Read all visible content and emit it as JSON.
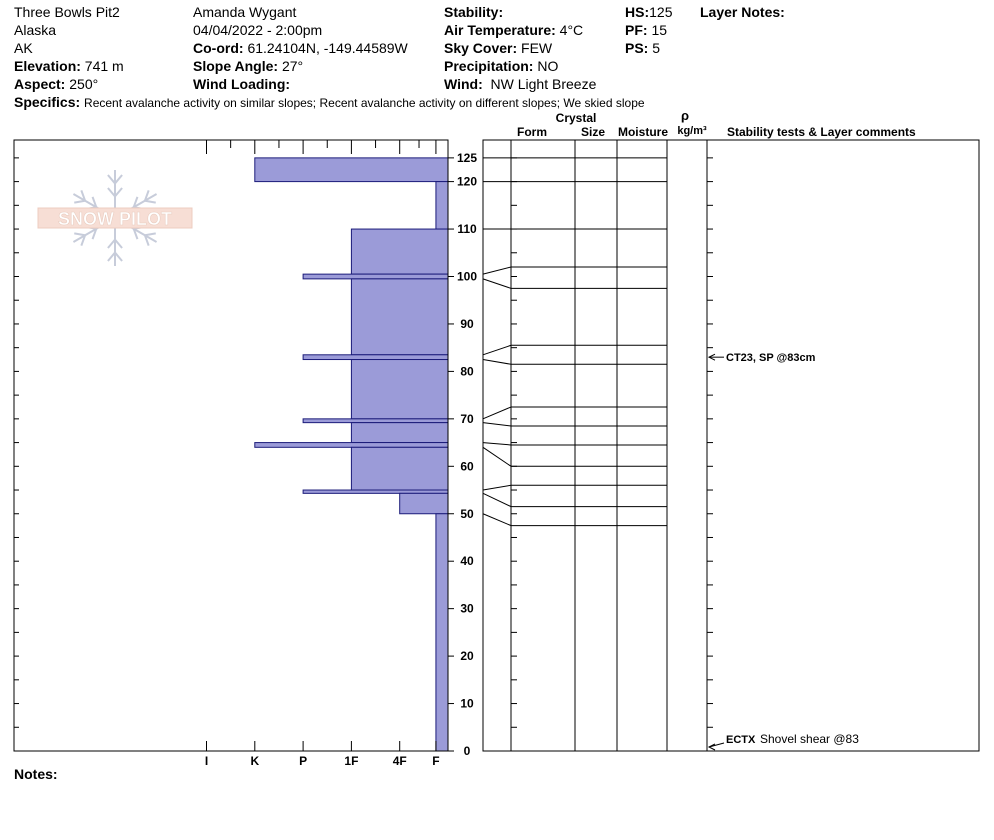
{
  "header": {
    "pit_name": "Three Bowls Pit2",
    "region": "Alaska",
    "state": "AK",
    "elevation_label": "Elevation:",
    "elevation": "741 m",
    "aspect_label": "Aspect:",
    "aspect": "250°",
    "observer": "Amanda Wygant",
    "datetime": "04/04/2022 - 2:00pm",
    "coord_label": "Co-ord:",
    "coord": "61.24104N, -149.44589W",
    "slope_label": "Slope Angle:",
    "slope": "27°",
    "wind_loading_label": "Wind Loading:",
    "wind_loading": "",
    "stability_label": "Stability:",
    "stability": "",
    "air_temp_label": "Air Temperature:",
    "air_temp": "4°C",
    "sky_label": "Sky Cover:",
    "sky": "FEW",
    "precip_label": "Precipitation:",
    "precip": "NO",
    "wind_label": "Wind:",
    "wind": "NW Light Breeze",
    "hs_label": "HS:",
    "hs": "125",
    "pf_label": "PF:",
    "pf": "15",
    "ps_label": "PS:",
    "ps": "5",
    "layer_notes_label": "Layer Notes:",
    "specifics_label": "Specifics:",
    "specifics": "Recent avalanche activity on similar slopes; Recent avalanche activity on different slopes; We skied slope"
  },
  "logo_text": "SNOW PILOT",
  "notes_label": "Notes:",
  "table_headers": {
    "crystal": "Crystal",
    "form": "Form",
    "size": "Size",
    "moisture": "Moisture",
    "rho": "ρ",
    "density_unit": "kg/m³",
    "stability": "Stability tests & Layer comments"
  },
  "colors": {
    "layer_fill": "#9b9bd8",
    "layer_stroke": "#1c1c7a"
  },
  "chart_data": {
    "type": "bar",
    "title": "",
    "xlabel": "",
    "ylabel": "",
    "orientation": "horizontal",
    "ylim": [
      0,
      125
    ],
    "y_ticks": [
      0,
      10,
      20,
      30,
      40,
      50,
      60,
      70,
      80,
      90,
      100,
      110,
      120,
      125
    ],
    "hardness_ticks": [
      {
        "label": "I",
        "value": 5
      },
      {
        "label": "K",
        "value": 4
      },
      {
        "label": "P",
        "value": 3
      },
      {
        "label": "1F",
        "value": 2
      },
      {
        "label": "4F",
        "value": 1
      },
      {
        "label": "F",
        "value": 0.25
      }
    ],
    "layers": [
      {
        "bottom": 120,
        "top": 125,
        "hardness": 4
      },
      {
        "bottom": 110,
        "top": 120,
        "hardness": 0.25
      },
      {
        "bottom": 100.5,
        "top": 110,
        "hardness": 2
      },
      {
        "bottom": 99.5,
        "top": 100.5,
        "hardness": 3
      },
      {
        "bottom": 83.5,
        "top": 99.5,
        "hardness": 2
      },
      {
        "bottom": 82.5,
        "top": 83.5,
        "hardness": 3
      },
      {
        "bottom": 70,
        "top": 82.5,
        "hardness": 2
      },
      {
        "bottom": 69.2,
        "top": 70,
        "hardness": 3
      },
      {
        "bottom": 65,
        "top": 69.2,
        "hardness": 2
      },
      {
        "bottom": 64,
        "top": 65,
        "hardness": 4
      },
      {
        "bottom": 55,
        "top": 64,
        "hardness": 2
      },
      {
        "bottom": 54.3,
        "top": 55,
        "hardness": 3
      },
      {
        "bottom": 50,
        "top": 54.3,
        "hardness": 1
      },
      {
        "bottom": 0,
        "top": 50,
        "hardness": 0.25
      }
    ],
    "layer_lines": [
      {
        "left": 125,
        "right": 125
      },
      {
        "left": 120,
        "right": 120
      },
      {
        "left": 110,
        "right": 110
      },
      {
        "left": 100.5,
        "right": 102
      },
      {
        "left": 99.5,
        "right": 97.5
      },
      {
        "left": 83.5,
        "right": 85.5
      },
      {
        "left": 82.5,
        "right": 81.5
      },
      {
        "left": 70,
        "right": 72.5
      },
      {
        "left": 69.2,
        "right": 68.5
      },
      {
        "left": 65,
        "right": 64.5
      },
      {
        "left": 64,
        "right": 60
      },
      {
        "left": 55,
        "right": 56
      },
      {
        "left": 54.3,
        "right": 51.5
      },
      {
        "left": 50,
        "right": 47.5
      }
    ],
    "stability_tests": [
      {
        "depth": 83,
        "label": "CT23, SP @83cm"
      },
      {
        "depth": 0,
        "label": "ECTX",
        "comment": "Shovel shear @83"
      }
    ]
  }
}
